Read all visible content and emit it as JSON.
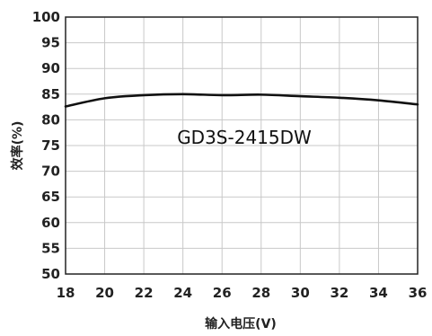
{
  "chart_data": {
    "type": "line",
    "title": "",
    "xlabel": "输入电压(V)",
    "ylabel": "效率(%)",
    "annotation": "GD3S-2415DW",
    "xlim": [
      18,
      36
    ],
    "ylim": [
      50,
      100
    ],
    "x_ticks": [
      18,
      20,
      22,
      24,
      26,
      28,
      30,
      32,
      34,
      36
    ],
    "y_ticks": [
      50,
      55,
      60,
      65,
      70,
      75,
      80,
      85,
      90,
      95,
      100
    ],
    "grid": true,
    "series": [
      {
        "x": [
          18,
          20,
          22,
          24,
          26,
          28,
          30,
          32,
          34,
          36
        ],
        "y": [
          82.6,
          84.2,
          84.8,
          85.0,
          84.8,
          84.9,
          84.6,
          84.3,
          83.8,
          83.0
        ]
      }
    ],
    "colors": {
      "line": "#111111",
      "grid": "#c8c8c8",
      "frame": "#222222"
    }
  }
}
